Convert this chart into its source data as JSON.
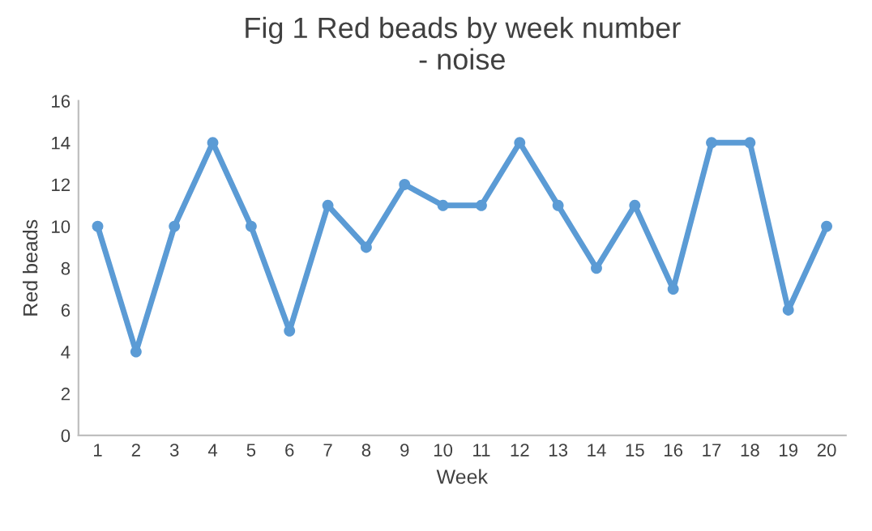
{
  "chart_data": {
    "type": "line",
    "title": "Fig 1 Red beads by week number\n- noise",
    "xlabel": "Week",
    "ylabel": "Red beads",
    "categories": [
      "1",
      "2",
      "3",
      "4",
      "5",
      "6",
      "7",
      "8",
      "9",
      "10",
      "11",
      "12",
      "13",
      "14",
      "15",
      "16",
      "17",
      "18",
      "19",
      "20"
    ],
    "series": [
      {
        "color": "#5b9bd5",
        "values": [
          10,
          4,
          10,
          14,
          10,
          5,
          11,
          9,
          12,
          11,
          11,
          14,
          11,
          8,
          11,
          7,
          14,
          14,
          6,
          10
        ]
      }
    ],
    "ylim": [
      0,
      16
    ],
    "yticks": [
      0,
      2,
      4,
      6,
      8,
      10,
      12,
      14,
      16
    ],
    "grid": false,
    "legend": false,
    "marker": "circle",
    "line_style": "solid"
  }
}
